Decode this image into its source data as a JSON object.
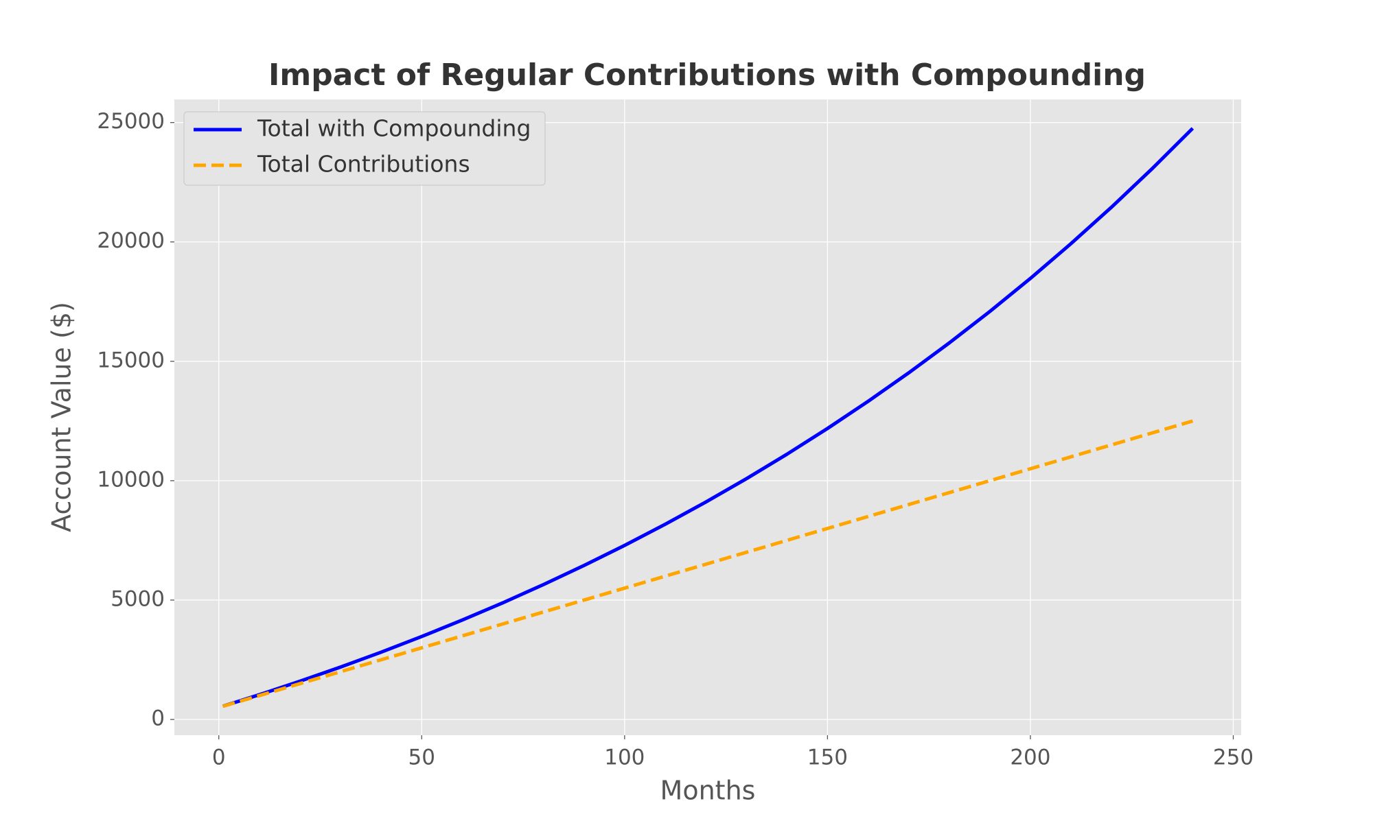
{
  "chart_data": {
    "type": "line",
    "title": "Impact of Regular Contributions with Compounding",
    "x_label": "Months",
    "y_label": "Account Value ($)",
    "x": [
      1,
      10,
      20,
      30,
      40,
      50,
      60,
      70,
      80,
      90,
      100,
      110,
      120,
      130,
      140,
      150,
      160,
      170,
      180,
      190,
      200,
      210,
      220,
      230,
      240
    ],
    "series": [
      {
        "name": "Total with Compounding",
        "color": "#0000ff",
        "dash": false,
        "values": [
          553,
          1037,
          1601,
          2195,
          2818,
          3474,
          4163,
          4887,
          5649,
          6449,
          7290,
          8174,
          9104,
          10081,
          11108,
          12187,
          13322,
          14514,
          15768,
          17086,
          18471,
          19927,
          21457,
          23066,
          24757
        ]
      },
      {
        "name": "Total Contributions",
        "color": "#ffa500",
        "dash": true,
        "values": [
          550,
          1000,
          1500,
          2000,
          2500,
          3000,
          3500,
          4000,
          4500,
          5000,
          5500,
          6000,
          6500,
          7000,
          7500,
          8000,
          8500,
          9000,
          9500,
          10000,
          10500,
          11000,
          11500,
          12000,
          12500
        ]
      }
    ],
    "xlim": [
      -10.95,
      251.95
    ],
    "xticks": [
      0,
      50,
      100,
      150,
      200,
      250
    ],
    "ylim": [
      -660,
      25967
    ],
    "yticks": [
      0,
      5000,
      10000,
      15000,
      20000,
      25000
    ],
    "grid": true,
    "legend": "upper left"
  }
}
